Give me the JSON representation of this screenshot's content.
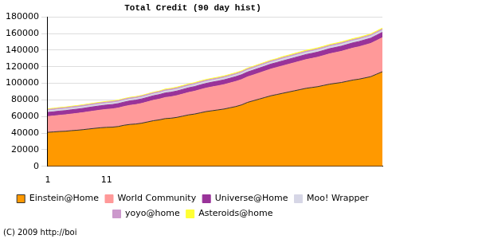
{
  "chart_data": {
    "type": "area",
    "title": "Total Credit (90 day hist)",
    "footer": "(C) 2009 http://boi",
    "categories": [
      "1",
      null,
      null,
      null,
      null,
      null,
      null,
      null,
      null,
      null,
      "11",
      null,
      null,
      null,
      null,
      null,
      null,
      null,
      null,
      null,
      null,
      null,
      null,
      null,
      null,
      null,
      null,
      null,
      null,
      null,
      null,
      null,
      null,
      null,
      null,
      null,
      null,
      null,
      null,
      null,
      null,
      null,
      null,
      null,
      null,
      null,
      null,
      null,
      null,
      null,
      null,
      null,
      null,
      null,
      null,
      null,
      null,
      null
    ],
    "series": [
      {
        "name": "Einstein@Home",
        "color": "#ff9900",
        "values": [
          41000,
          41500,
          42000,
          42300,
          43000,
          43500,
          44200,
          45000,
          45800,
          46500,
          47000,
          47200,
          48000,
          49500,
          50500,
          51000,
          52000,
          53500,
          55000,
          56000,
          57500,
          58000,
          59000,
          60500,
          62000,
          63000,
          64500,
          66000,
          67000,
          68000,
          69000,
          70500,
          72000,
          74000,
          77000,
          79000,
          81000,
          83000,
          85000,
          86500,
          88000,
          89500,
          91000,
          92500,
          94000,
          95000,
          96000,
          97500,
          99000,
          100000,
          101000,
          102500,
          104000,
          105000,
          106500,
          108000,
          111000,
          114000
        ]
      },
      {
        "name": "World Community",
        "color": "#ff9999",
        "values": [
          19000,
          19200,
          19500,
          19800,
          20000,
          20300,
          20500,
          20800,
          21000,
          21300,
          21600,
          22000,
          22300,
          22600,
          23000,
          23400,
          23800,
          24200,
          24600,
          25000,
          25400,
          25800,
          26200,
          26600,
          27000,
          27500,
          28000,
          28300,
          28700,
          29000,
          29400,
          29800,
          30200,
          30500,
          30700,
          31000,
          31400,
          31800,
          32200,
          32600,
          33000,
          33400,
          33800,
          34200,
          34600,
          35000,
          35500,
          36000,
          36500,
          37000,
          37500,
          38000,
          38500,
          39000,
          39500,
          40000,
          40500,
          41000
        ]
      },
      {
        "name": "Universe@Home",
        "color": "#993399",
        "values": [
          5000,
          5000,
          5050,
          5050,
          5100,
          5100,
          5150,
          5150,
          5200,
          5200,
          5250,
          5250,
          5300,
          5300,
          5350,
          5350,
          5400,
          5400,
          5450,
          5450,
          5500,
          5500,
          5550,
          5550,
          5600,
          5600,
          5650,
          5650,
          5700,
          5700,
          5750,
          5750,
          5800,
          5800,
          5850,
          5850,
          5900,
          5900,
          5950,
          5950,
          6000,
          6000,
          6050,
          6050,
          6100,
          6100,
          6150,
          6150,
          6200,
          6200,
          6250,
          6250,
          6300,
          6300,
          6350,
          6350,
          6400,
          6400
        ]
      },
      {
        "name": "Moo! Wrapper",
        "color": "#d6d6e6",
        "values": [
          2000,
          2000,
          2000,
          2000,
          2000,
          2000,
          2000,
          2000,
          2000,
          2000,
          2000,
          2000,
          2000,
          2000,
          2000,
          2000,
          2000,
          2000,
          2000,
          2000,
          2200,
          2200,
          2200,
          2200,
          2200,
          2200,
          2200,
          2200,
          2200,
          2200,
          2200,
          2200,
          2200,
          2200,
          2200,
          2200,
          2200,
          2200,
          2200,
          2200,
          2400,
          2400,
          2400,
          2400,
          2400,
          2400,
          2400,
          2400,
          2400,
          2400,
          2400,
          2400,
          2400,
          2400,
          2400,
          2400,
          2400,
          2400
        ]
      },
      {
        "name": "yoyo@home",
        "color": "#cc99cc",
        "values": [
          1500,
          1500,
          1500,
          1500,
          1500,
          1500,
          1500,
          1500,
          1500,
          1500,
          1500,
          1500,
          1500,
          1500,
          1500,
          1500,
          1500,
          1500,
          1500,
          1500,
          1500,
          1500,
          1500,
          1500,
          1500,
          1500,
          1500,
          1500,
          1500,
          1500,
          1500,
          1500,
          1500,
          1500,
          1500,
          1500,
          1500,
          1500,
          1500,
          1500,
          1500,
          1500,
          1500,
          1500,
          1500,
          1500,
          1500,
          1500,
          1500,
          1500,
          1500,
          1500,
          1500,
          1500,
          1500,
          1500,
          1500,
          1500
        ]
      },
      {
        "name": "Asteroids@home",
        "color": "#ffff33",
        "values": [
          800,
          800,
          800,
          800,
          800,
          800,
          800,
          800,
          800,
          800,
          800,
          800,
          800,
          800,
          800,
          800,
          800,
          800,
          800,
          800,
          1000,
          1000,
          1000,
          1000,
          1000,
          1000,
          1000,
          1000,
          1000,
          1000,
          1000,
          1000,
          1000,
          1000,
          1000,
          1000,
          1000,
          1000,
          1000,
          1000,
          1200,
          1200,
          1200,
          1200,
          1200,
          1200,
          1200,
          1200,
          1200,
          1200,
          1200,
          1200,
          1200,
          1200,
          1200,
          1200,
          1200,
          1200
        ]
      }
    ],
    "ylim": [
      0,
      180000
    ],
    "yticks": [
      0,
      20000,
      40000,
      60000,
      80000,
      100000,
      120000,
      140000,
      160000,
      180000
    ],
    "grid": true,
    "stacked": true,
    "legend": "bottom"
  }
}
